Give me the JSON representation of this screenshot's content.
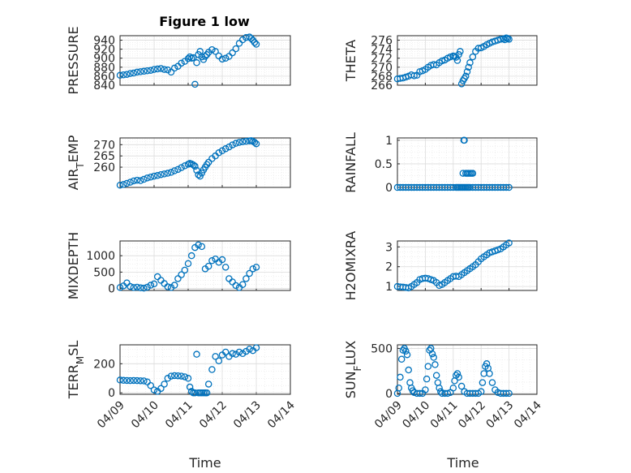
{
  "figure": {
    "title": "Figure 1 low"
  },
  "colors": {
    "marker": "#0072BD",
    "axis": "#262626",
    "grid": "#dcdcdc"
  },
  "chart_data": [
    {
      "type": "scatter",
      "ylabel": "PRESSURE",
      "title": "Figure 1 low",
      "ylim": [
        840,
        950
      ],
      "yticks": [
        840,
        860,
        880,
        900,
        920,
        940
      ],
      "xlim": [
        "04/09",
        "04/14"
      ],
      "xticks": [],
      "xlabel": "",
      "x": [
        9.0,
        9.1,
        9.2,
        9.3,
        9.4,
        9.5,
        9.6,
        9.7,
        9.8,
        9.9,
        10.0,
        10.1,
        10.2,
        10.3,
        10.4,
        10.5,
        10.6,
        10.7,
        10.8,
        10.9,
        11.0,
        11.05,
        11.1,
        11.15,
        11.2,
        11.25,
        11.3,
        11.35,
        11.4,
        11.45,
        11.5,
        11.55,
        11.6,
        11.7,
        11.8,
        11.9,
        12.0,
        12.1,
        12.2,
        12.3,
        12.4,
        12.5,
        12.6,
        12.7,
        12.8,
        12.85,
        12.9,
        12.95,
        13.0
      ],
      "y": [
        862,
        863,
        864,
        866,
        867,
        869,
        870,
        871,
        872,
        873,
        875,
        876,
        877,
        875,
        874,
        869,
        878,
        882,
        889,
        893,
        899,
        903,
        900,
        901,
        842,
        890,
        908,
        915,
        903,
        897,
        904,
        908,
        913,
        919,
        915,
        905,
        898,
        900,
        904,
        912,
        921,
        933,
        941,
        946,
        947,
        944,
        940,
        935,
        931
      ]
    },
    {
      "type": "scatter",
      "ylabel": "THETA",
      "ylim": [
        266,
        277
      ],
      "yticks": [
        266,
        268,
        270,
        272,
        274,
        276
      ],
      "xlim": [
        "04/09",
        "04/14"
      ],
      "xticks": [],
      "xlabel": "",
      "x": [
        9.0,
        9.1,
        9.2,
        9.3,
        9.4,
        9.5,
        9.6,
        9.7,
        9.8,
        9.9,
        10.0,
        10.1,
        10.2,
        10.3,
        10.4,
        10.5,
        10.6,
        10.7,
        10.8,
        10.9,
        11.0,
        11.05,
        11.1,
        11.15,
        11.2,
        11.25,
        11.3,
        11.35,
        11.4,
        11.45,
        11.5,
        11.55,
        11.6,
        11.7,
        11.8,
        11.9,
        12.0,
        12.1,
        12.2,
        12.3,
        12.4,
        12.5,
        12.6,
        12.7,
        12.8,
        12.85,
        12.9,
        12.95,
        13.0
      ],
      "y": [
        267.4,
        267.5,
        267.6,
        267.8,
        268.0,
        268.3,
        268.1,
        268.2,
        269.0,
        269.2,
        269.5,
        270.0,
        270.4,
        270.6,
        270.5,
        271.0,
        271.4,
        271.6,
        272.0,
        272.3,
        272.5,
        272.4,
        272.2,
        271.5,
        272.8,
        273.5,
        266.3,
        267.0,
        267.5,
        268.0,
        269.0,
        270.0,
        271.0,
        272.3,
        273.5,
        274.2,
        274.3,
        274.6,
        275.0,
        275.3,
        275.6,
        275.8,
        276.0,
        276.2,
        276.3,
        276.1,
        276.5,
        276.4,
        276.2
      ]
    },
    {
      "type": "scatter",
      "ylabel": "AIR_TEMP",
      "ylim": [
        251,
        273
      ],
      "yticks": [
        260,
        265,
        270
      ],
      "xlim": [
        "04/09",
        "04/14"
      ],
      "xticks": [],
      "xlabel": "",
      "x": [
        9.0,
        9.1,
        9.2,
        9.3,
        9.4,
        9.5,
        9.6,
        9.7,
        9.8,
        9.9,
        10.0,
        10.1,
        10.2,
        10.3,
        10.4,
        10.5,
        10.6,
        10.7,
        10.8,
        10.9,
        11.0,
        11.05,
        11.1,
        11.15,
        11.2,
        11.25,
        11.3,
        11.35,
        11.4,
        11.45,
        11.5,
        11.55,
        11.6,
        11.7,
        11.8,
        11.9,
        12.0,
        12.1,
        12.2,
        12.3,
        12.4,
        12.5,
        12.6,
        12.7,
        12.8,
        12.85,
        12.9,
        12.95,
        13.0
      ],
      "y": [
        252.0,
        252.3,
        252.8,
        253.3,
        253.9,
        254.2,
        254.0,
        254.6,
        255.2,
        255.6,
        256.0,
        256.3,
        256.7,
        257.0,
        257.3,
        257.7,
        258.4,
        259.0,
        259.8,
        260.6,
        261.3,
        261.7,
        261.4,
        261.0,
        260.4,
        258.6,
        256.6,
        256.0,
        257.4,
        258.8,
        260.0,
        261.2,
        262.2,
        263.8,
        265.0,
        266.4,
        267.3,
        268.2,
        269.0,
        269.9,
        270.6,
        271.0,
        271.3,
        271.5,
        271.7,
        271.8,
        271.5,
        271.0,
        270.4
      ]
    },
    {
      "type": "scatter",
      "ylabel": "RAINFALL",
      "ylim": [
        0,
        1.05
      ],
      "yticks": [
        0,
        0.5,
        1
      ],
      "xlim": [
        "04/09",
        "04/14"
      ],
      "xticks": [],
      "xlabel": "",
      "x": [
        9.0,
        9.1,
        9.2,
        9.3,
        9.4,
        9.5,
        9.6,
        9.7,
        9.8,
        9.9,
        10.0,
        10.1,
        10.2,
        10.3,
        10.4,
        10.5,
        10.6,
        10.7,
        10.8,
        10.9,
        11.0,
        11.1,
        11.15,
        11.2,
        11.25,
        11.3,
        11.35,
        11.4,
        11.45,
        11.5,
        11.55,
        11.6,
        11.7,
        11.8,
        11.9,
        12.0,
        12.1,
        12.2,
        12.3,
        12.4,
        12.5,
        12.6,
        12.7,
        12.8,
        12.9,
        13.0,
        11.35,
        11.38,
        11.4,
        11.45,
        11.5,
        11.55,
        11.6,
        11.65,
        11.7
      ],
      "y": [
        0,
        0,
        0,
        0,
        0,
        0,
        0,
        0,
        0,
        0,
        0,
        0,
        0,
        0,
        0,
        0,
        0,
        0,
        0,
        0,
        0,
        0,
        0,
        0,
        0,
        0,
        0,
        0,
        0,
        0,
        0,
        0,
        0,
        0,
        0,
        0,
        0,
        0,
        0,
        0,
        0,
        0,
        0,
        0,
        0,
        0,
        0.3,
        1.0,
        1.0,
        0.3,
        0.3,
        0.3,
        0.3,
        0.3,
        0.3
      ]
    },
    {
      "type": "scatter",
      "ylabel": "MIXDEPTH",
      "ylim": [
        -60,
        1450
      ],
      "yticks": [
        0,
        500,
        1000
      ],
      "xlim": [
        "04/09",
        "04/14"
      ],
      "xticks": [],
      "xlabel": "",
      "x": [
        9.0,
        9.1,
        9.2,
        9.3,
        9.4,
        9.5,
        9.6,
        9.7,
        9.8,
        9.9,
        10.0,
        10.1,
        10.2,
        10.3,
        10.4,
        10.5,
        10.6,
        10.7,
        10.8,
        10.9,
        11.0,
        11.1,
        11.2,
        11.3,
        11.4,
        11.5,
        11.6,
        11.7,
        11.8,
        11.9,
        12.0,
        12.1,
        12.2,
        12.3,
        12.4,
        12.5,
        12.6,
        12.7,
        12.8,
        12.9,
        13.0
      ],
      "y": [
        30,
        80,
        170,
        60,
        30,
        40,
        20,
        10,
        40,
        100,
        140,
        360,
        250,
        150,
        50,
        30,
        100,
        300,
        420,
        560,
        760,
        1000,
        1250,
        1330,
        1280,
        600,
        680,
        850,
        900,
        800,
        880,
        650,
        300,
        200,
        90,
        30,
        120,
        300,
        460,
        600,
        650
      ]
    },
    {
      "type": "scatter",
      "ylabel": "H2OMIXRA",
      "ylim": [
        0.8,
        3.3
      ],
      "yticks": [
        1,
        2,
        3
      ],
      "xlim": [
        "04/09",
        "04/14"
      ],
      "xticks": [],
      "xlabel": "",
      "x": [
        9.0,
        9.1,
        9.2,
        9.3,
        9.4,
        9.5,
        9.6,
        9.7,
        9.8,
        9.9,
        10.0,
        10.1,
        10.2,
        10.3,
        10.4,
        10.5,
        10.6,
        10.7,
        10.8,
        10.9,
        11.0,
        11.1,
        11.2,
        11.3,
        11.4,
        11.5,
        11.6,
        11.7,
        11.8,
        11.9,
        12.0,
        12.1,
        12.2,
        12.3,
        12.4,
        12.5,
        12.6,
        12.7,
        12.8,
        12.9,
        13.0
      ],
      "y": [
        1.0,
        0.98,
        0.97,
        0.95,
        0.93,
        1.0,
        1.1,
        1.2,
        1.35,
        1.4,
        1.42,
        1.4,
        1.35,
        1.3,
        1.2,
        1.05,
        1.1,
        1.2,
        1.3,
        1.4,
        1.5,
        1.52,
        1.5,
        1.6,
        1.7,
        1.8,
        1.9,
        2.0,
        2.1,
        2.25,
        2.4,
        2.5,
        2.6,
        2.7,
        2.75,
        2.8,
        2.85,
        2.9,
        3.0,
        3.1,
        3.2
      ]
    },
    {
      "type": "scatter",
      "ylabel": "TERR_MSL",
      "ylim": [
        -10,
        330
      ],
      "yticks": [
        0,
        200
      ],
      "xlim": [
        "04/09",
        "04/14"
      ],
      "xticks": [
        "04/09",
        "04/10",
        "04/11",
        "04/12",
        "04/13",
        "04/14"
      ],
      "xlabel": "Time",
      "x": [
        9.0,
        9.1,
        9.2,
        9.3,
        9.4,
        9.5,
        9.6,
        9.7,
        9.8,
        9.9,
        10.0,
        10.1,
        10.2,
        10.3,
        10.4,
        10.5,
        10.6,
        10.7,
        10.8,
        10.9,
        11.0,
        11.05,
        11.1,
        11.15,
        11.2,
        11.25,
        11.3,
        11.35,
        11.4,
        11.45,
        11.5,
        11.55,
        11.6,
        11.7,
        11.8,
        11.9,
        12.0,
        12.1,
        12.2,
        12.3,
        12.4,
        12.5,
        12.6,
        12.7,
        12.8,
        12.9,
        13.0
      ],
      "y": [
        88,
        86,
        85,
        84,
        85,
        84,
        83,
        82,
        75,
        50,
        20,
        10,
        30,
        60,
        100,
        115,
        118,
        117,
        115,
        110,
        100,
        40,
        10,
        0,
        0,
        265,
        0,
        0,
        0,
        0,
        0,
        0,
        60,
        160,
        250,
        220,
        260,
        280,
        250,
        270,
        265,
        280,
        270,
        285,
        300,
        290,
        310
      ]
    },
    {
      "type": "scatter",
      "ylabel": "SUN_FLUX",
      "ylim": [
        -10,
        540
      ],
      "yticks": [
        0,
        500
      ],
      "xlim": [
        "04/09",
        "04/14"
      ],
      "xticks": [
        "04/09",
        "04/10",
        "04/11",
        "04/12",
        "04/13",
        "04/14"
      ],
      "xlabel": "Time",
      "x": [
        9.0,
        9.05,
        9.1,
        9.15,
        9.2,
        9.25,
        9.3,
        9.35,
        9.4,
        9.45,
        9.5,
        9.55,
        9.6,
        9.7,
        9.8,
        9.9,
        10.0,
        10.05,
        10.1,
        10.15,
        10.2,
        10.25,
        10.3,
        10.35,
        10.4,
        10.45,
        10.5,
        10.55,
        10.6,
        10.7,
        10.8,
        10.9,
        11.0,
        11.05,
        11.1,
        11.15,
        11.2,
        11.3,
        11.4,
        11.5,
        11.6,
        11.7,
        11.8,
        11.9,
        12.0,
        12.05,
        12.1,
        12.15,
        12.2,
        12.25,
        12.3,
        12.4,
        12.5,
        12.6,
        12.7,
        12.8,
        12.9,
        13.0
      ],
      "y": [
        0,
        60,
        180,
        380,
        480,
        500,
        470,
        430,
        260,
        120,
        60,
        30,
        10,
        0,
        0,
        0,
        40,
        160,
        300,
        480,
        500,
        440,
        400,
        320,
        200,
        120,
        60,
        20,
        0,
        0,
        0,
        10,
        60,
        140,
        200,
        220,
        180,
        80,
        20,
        0,
        0,
        0,
        0,
        0,
        20,
        120,
        220,
        300,
        330,
        280,
        220,
        120,
        40,
        10,
        0,
        0,
        0,
        0
      ]
    }
  ]
}
